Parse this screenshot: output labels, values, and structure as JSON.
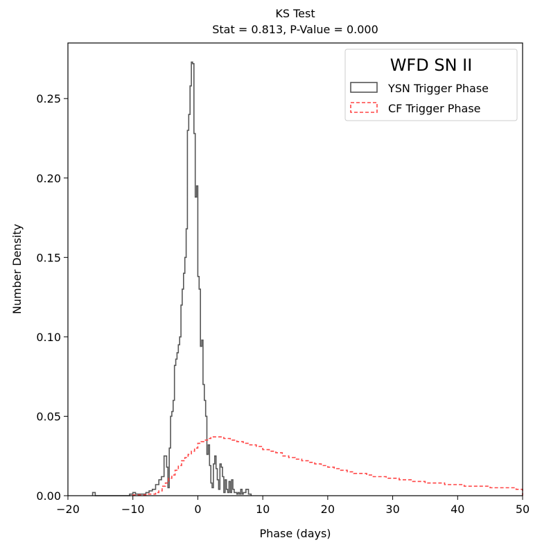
{
  "chart_data": {
    "type": "histogram-step",
    "title_line1": "KS Test",
    "title_line2": "Stat = 0.813, P-Value = 0.000",
    "xlabel": "Phase (days)",
    "ylabel": "Number Density",
    "xlim": [
      -20,
      50
    ],
    "ylim": [
      0.0,
      0.285
    ],
    "xticks": [
      -20,
      -10,
      0,
      10,
      20,
      30,
      40,
      50
    ],
    "yticks": [
      0.0,
      0.05,
      0.1,
      0.15,
      0.2,
      0.25
    ],
    "ytick_labels": [
      "0.00",
      "0.05",
      "0.10",
      "0.15",
      "0.20",
      "0.25"
    ],
    "grid": false,
    "legend": {
      "title": "WFD SN II",
      "placement": "top-right",
      "entries": [
        "YSN Trigger Phase",
        "CF Trigger Phase"
      ]
    },
    "series": [
      {
        "name": "YSN Trigger Phase",
        "style": "solid",
        "color": "#555555",
        "edges": [
          -16.2,
          -15.8,
          -10.5,
          -10.0,
          -9.6,
          -9.0,
          -8.5,
          -8.0,
          -7.5,
          -7.0,
          -6.5,
          -6.0,
          -5.6,
          -5.2,
          -4.8,
          -4.6,
          -4.4,
          -4.2,
          -4.0,
          -3.8,
          -3.6,
          -3.4,
          -3.2,
          -3.0,
          -2.8,
          -2.6,
          -2.4,
          -2.2,
          -2.0,
          -1.8,
          -1.6,
          -1.4,
          -1.2,
          -1.0,
          -0.8,
          -0.6,
          -0.4,
          -0.2,
          0.0,
          0.2,
          0.4,
          0.6,
          0.8,
          1.0,
          1.2,
          1.4,
          1.6,
          1.8,
          2.0,
          2.2,
          2.4,
          2.6,
          2.8,
          3.0,
          3.2,
          3.4,
          3.6,
          3.8,
          4.0,
          4.2,
          4.4,
          4.6,
          4.8,
          5.0,
          5.2,
          5.4,
          5.6,
          5.8,
          6.0,
          6.2,
          6.4,
          6.6,
          6.8,
          7.0,
          7.4,
          7.8,
          8.2
        ],
        "values": [
          0.002,
          0,
          0.001,
          0.002,
          0.001,
          0.001,
          0.001,
          0.002,
          0.003,
          0.004,
          0.007,
          0.01,
          0.012,
          0.025,
          0.018,
          0.005,
          0.03,
          0.05,
          0.053,
          0.06,
          0.082,
          0.086,
          0.09,
          0.095,
          0.1,
          0.12,
          0.13,
          0.14,
          0.15,
          0.168,
          0.23,
          0.24,
          0.258,
          0.273,
          0.272,
          0.228,
          0.188,
          0.195,
          0.138,
          0.13,
          0.094,
          0.098,
          0.07,
          0.06,
          0.05,
          0.026,
          0.032,
          0.019,
          0.008,
          0.005,
          0.02,
          0.025,
          0.017,
          0.01,
          0.004,
          0.02,
          0.018,
          0.012,
          0.002,
          0.01,
          0.004,
          0.002,
          0.009,
          0.002,
          0.01,
          0.004,
          0.002,
          0.002,
          0.001,
          0.002,
          0.001,
          0.004,
          0.001,
          0.002,
          0.004,
          0.001
        ]
      },
      {
        "name": "CF Trigger Phase",
        "style": "dashed",
        "color": "#ff4444",
        "edges": [
          -10,
          -8,
          -6.5,
          -6,
          -5.5,
          -5,
          -4.5,
          -4,
          -3.5,
          -3,
          -2.5,
          -2,
          -1.5,
          -1,
          -0.5,
          0,
          0.5,
          1,
          1.5,
          2,
          3,
          4,
          5,
          6,
          7,
          8,
          9,
          10,
          11,
          12,
          13,
          14,
          15,
          16,
          17,
          18,
          19,
          20,
          21,
          22,
          23,
          24,
          25,
          26,
          27,
          28,
          29,
          30,
          31,
          32,
          33,
          34,
          35,
          36,
          37,
          38,
          39,
          40,
          41,
          42,
          43,
          44,
          45,
          46,
          47,
          48,
          49,
          50
        ],
        "values": [
          0.0005,
          0.001,
          0.002,
          0.003,
          0.006,
          0.008,
          0.011,
          0.013,
          0.016,
          0.019,
          0.022,
          0.024,
          0.026,
          0.028,
          0.03,
          0.033,
          0.034,
          0.035,
          0.036,
          0.037,
          0.037,
          0.036,
          0.035,
          0.034,
          0.033,
          0.032,
          0.031,
          0.029,
          0.028,
          0.027,
          0.025,
          0.024,
          0.023,
          0.022,
          0.021,
          0.02,
          0.019,
          0.018,
          0.017,
          0.016,
          0.015,
          0.014,
          0.014,
          0.013,
          0.012,
          0.012,
          0.011,
          0.011,
          0.01,
          0.01,
          0.009,
          0.009,
          0.008,
          0.008,
          0.008,
          0.007,
          0.007,
          0.007,
          0.006,
          0.006,
          0.006,
          0.006,
          0.005,
          0.005,
          0.005,
          0.005,
          0.004
        ]
      }
    ]
  }
}
